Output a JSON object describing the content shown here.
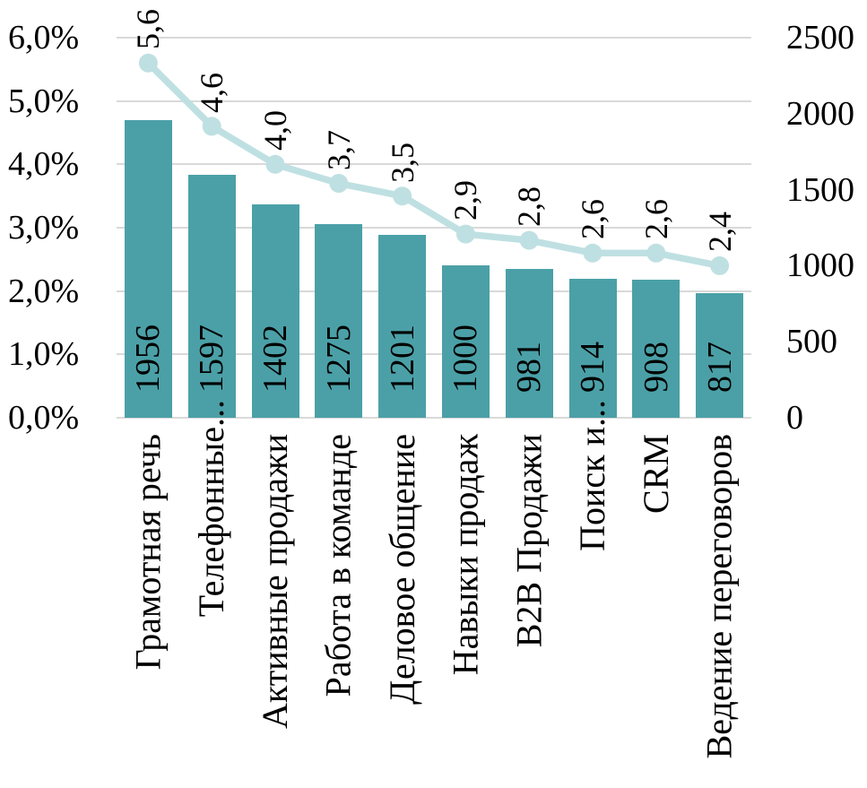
{
  "chart_data": {
    "type": "bar",
    "subtype": "combo-bar-line-pareto",
    "title": "",
    "legend": "none",
    "grid": true,
    "categories": [
      "Грамотная речь",
      "Телефонные...",
      "Активные продажи",
      "Работа в команде",
      "Деловое общение",
      "Навыки продаж",
      "B2B Продажи",
      "Поиск и...",
      "CRM",
      "Ведение переговоров"
    ],
    "series": [
      {
        "id": "bars",
        "type": "bar",
        "axis": "right",
        "values": [
          1956,
          1597,
          1402,
          1275,
          1201,
          1000,
          981,
          914,
          908,
          817
        ],
        "data_labels": [
          "1956",
          "1597",
          "1402",
          "1275",
          "1201",
          "1000",
          "981",
          "914",
          "908",
          "817"
        ]
      },
      {
        "id": "line",
        "type": "line",
        "axis": "left",
        "values": [
          5.6,
          4.6,
          4.0,
          3.7,
          3.5,
          2.9,
          2.8,
          2.6,
          2.6,
          2.4
        ],
        "data_labels": [
          "5,6",
          "4,6",
          "4,0",
          "3,7",
          "3,5",
          "2,9",
          "2,8",
          "2,6",
          "2,6",
          "2,4"
        ]
      }
    ],
    "left_axis": {
      "tick_labels": [
        "6,0%",
        "5,0%",
        "4,0%",
        "3,0%",
        "2,0%",
        "1,0%",
        "0,0%"
      ],
      "min": 0,
      "max": 6,
      "unit": "%"
    },
    "right_axis": {
      "tick_labels": [
        "2500",
        "2000",
        "1500",
        "1000",
        "500",
        "0"
      ],
      "min": 0,
      "max": 2500
    },
    "colors": {
      "bar": "#4BA0A7",
      "line": "#BFE0E2",
      "gridline": "#D9D9D9",
      "text": "#000000",
      "background": "#FFFFFF"
    }
  }
}
